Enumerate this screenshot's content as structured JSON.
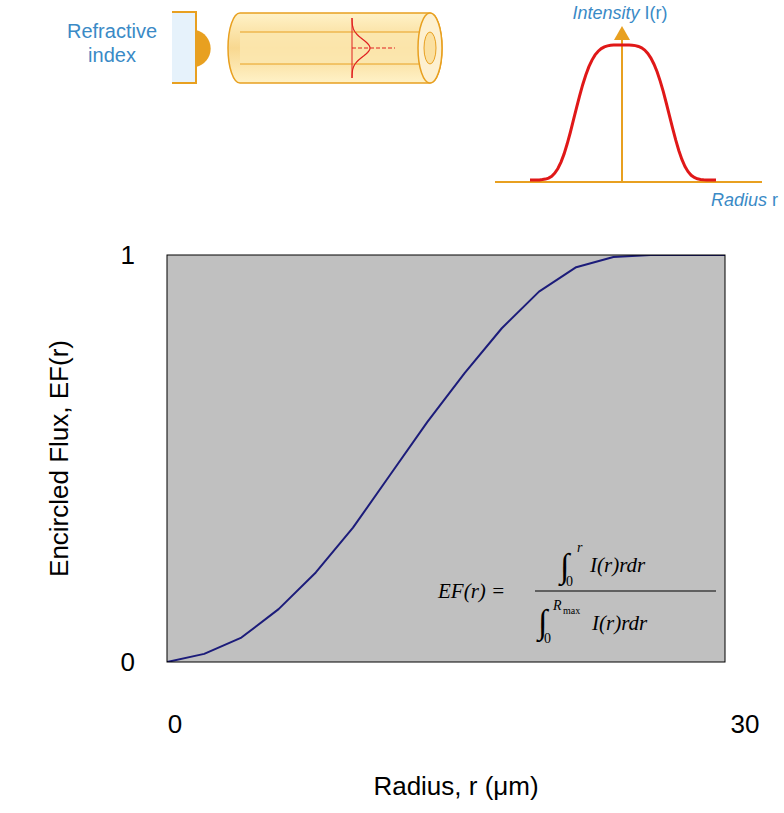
{
  "chart_data": {
    "type": "line",
    "x_label": "Radius, r (μm)",
    "y_label": "Encircled Flux, EF(r)",
    "x": [
      0,
      2,
      4,
      6,
      8,
      10,
      12,
      14,
      16,
      18,
      20,
      22,
      24,
      26,
      28,
      30
    ],
    "values": [
      0,
      0.02,
      0.06,
      0.13,
      0.22,
      0.33,
      0.46,
      0.59,
      0.71,
      0.82,
      0.91,
      0.97,
      0.995,
      1.0,
      1.0,
      1.0
    ],
    "color": "#1c1c7a",
    "xlim": [
      0,
      30
    ],
    "xticks": [
      0,
      30
    ],
    "ylim": [
      0,
      1
    ],
    "yticks": [
      0,
      1
    ],
    "grid": false,
    "annotations": {
      "lhs": "EF(r) =",
      "integral": "∫",
      "num_lower": "0",
      "num_upper": "r",
      "num_integrand": "I(r)rdr",
      "den_lower": "0",
      "den_upper": "R",
      "den_upper_sub": "max",
      "den_integrand": "I(r)rdr"
    }
  },
  "diagram": {
    "refractive_index_label": "Refractive index",
    "intensity_label": "Intensity",
    "intensity_symbol": "I(r)",
    "radius_label": "Radius",
    "radius_symbol": "r"
  }
}
